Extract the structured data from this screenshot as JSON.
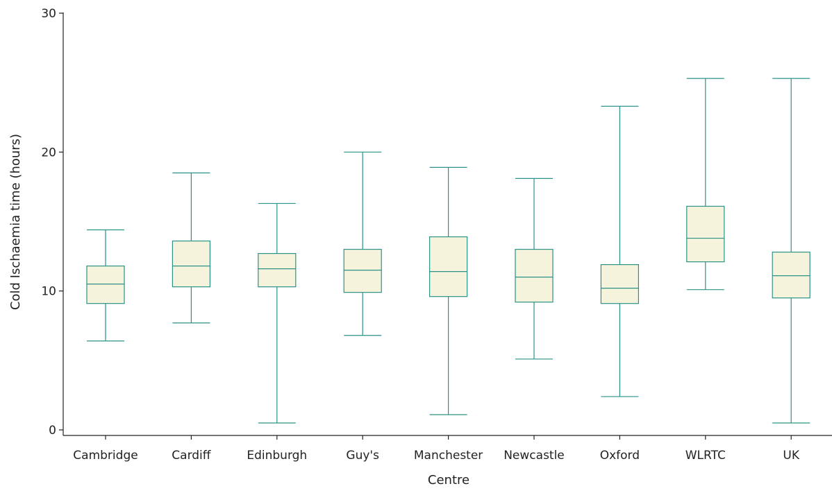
{
  "chart_data": {
    "type": "boxplot",
    "title": "",
    "xlabel": "Centre",
    "ylabel": "Cold Ischaemia time (hours)",
    "ylim": [
      0,
      30
    ],
    "yticks": [
      0,
      10,
      20,
      30
    ],
    "grid": false,
    "categories": [
      "Cambridge",
      "Cardiff",
      "Edinburgh",
      "Guy's",
      "Manchester",
      "Newcastle",
      "Oxford",
      "WLRTC",
      "UK"
    ],
    "boxes": [
      {
        "category": "Cambridge",
        "min": 6.4,
        "q1": 9.1,
        "median": 10.5,
        "q3": 11.8,
        "max": 14.4
      },
      {
        "category": "Cardiff",
        "min": 7.7,
        "q1": 10.3,
        "median": 11.8,
        "q3": 13.6,
        "max": 18.5
      },
      {
        "category": "Edinburgh",
        "min": 0.5,
        "q1": 10.3,
        "median": 11.6,
        "q3": 12.7,
        "max": 16.3
      },
      {
        "category": "Guy's",
        "min": 6.8,
        "q1": 9.9,
        "median": 11.5,
        "q3": 13.0,
        "max": 20.0
      },
      {
        "category": "Manchester",
        "min": 1.1,
        "q1": 9.6,
        "median": 11.4,
        "q3": 13.9,
        "max": 18.9
      },
      {
        "category": "Newcastle",
        "min": 5.1,
        "q1": 9.2,
        "median": 11.0,
        "q3": 13.0,
        "max": 18.1
      },
      {
        "category": "Oxford",
        "min": 2.4,
        "q1": 9.1,
        "median": 10.2,
        "q3": 11.9,
        "max": 23.3
      },
      {
        "category": "WLRTC",
        "min": 10.1,
        "q1": 12.1,
        "median": 13.8,
        "q3": 16.1,
        "max": 25.3
      },
      {
        "category": "UK",
        "min": 0.5,
        "q1": 9.5,
        "median": 11.1,
        "q3": 12.8,
        "max": 25.3
      }
    ],
    "colors": {
      "box_fill": "#f5f3dc",
      "box_stroke": "#2a9287",
      "axis": "#222222"
    }
  }
}
